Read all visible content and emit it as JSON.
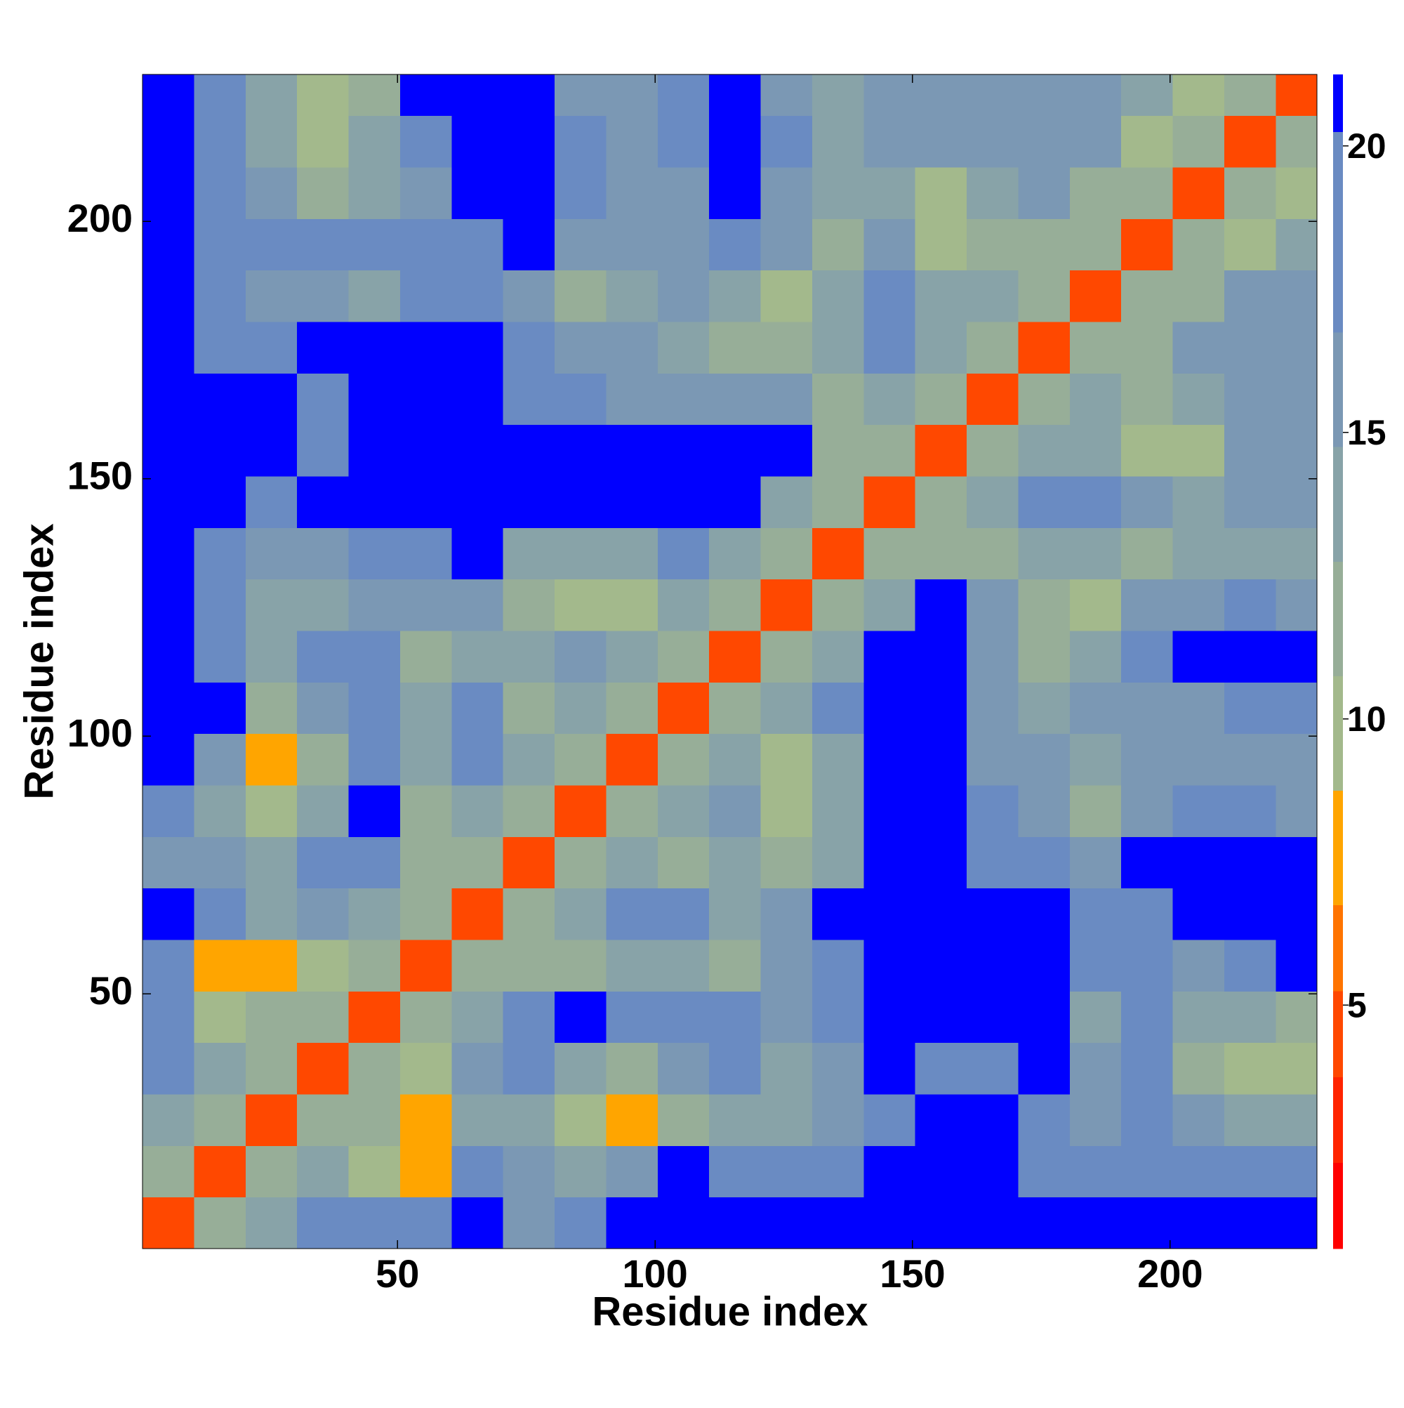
{
  "chart_data": {
    "type": "heatmap",
    "xlabel": "Residue index",
    "ylabel": "Residue index",
    "x_edges": [
      0.5,
      10.5,
      20.5,
      30.5,
      40.5,
      50.5,
      60.5,
      70.5,
      80.5,
      90.5,
      100.5,
      110.5,
      120.5,
      130.5,
      140.5,
      150.5,
      160.5,
      170.5,
      180.5,
      190.5,
      200.5,
      210.5,
      220.5,
      228.5
    ],
    "y_edges": [
      0.5,
      10.5,
      20.5,
      30.5,
      40.5,
      50.5,
      60.5,
      70.5,
      80.5,
      90.5,
      100.5,
      110.5,
      120.5,
      130.5,
      140.5,
      150.5,
      160.5,
      170.5,
      180.5,
      190.5,
      200.5,
      210.5,
      220.5,
      228.5
    ],
    "xlim": [
      0.5,
      228.5
    ],
    "ylim": [
      0.5,
      228.5
    ],
    "xticks": [
      50,
      100,
      150,
      200
    ],
    "yticks": [
      50,
      100,
      150,
      200
    ],
    "values": [
      [
        4,
        12,
        13,
        17,
        17,
        17,
        21,
        15,
        17,
        21,
        21,
        21,
        21,
        21,
        21,
        21,
        21,
        21,
        21,
        21,
        21,
        21,
        21
      ],
      [
        12,
        4,
        12,
        13,
        9,
        7,
        17,
        15,
        13,
        15,
        21,
        17,
        17,
        17,
        21,
        21,
        21,
        19,
        19,
        19,
        19,
        19,
        19
      ],
      [
        13,
        12,
        4,
        12,
        11,
        7,
        13,
        13,
        9,
        7,
        11,
        13,
        13,
        15,
        19,
        21,
        21,
        19,
        15,
        17,
        15,
        13,
        13
      ],
      [
        17,
        13,
        12,
        4,
        12,
        9,
        15,
        17,
        13,
        11,
        15,
        17,
        13,
        15,
        21,
        17,
        17,
        21,
        15,
        17,
        11,
        9,
        9
      ],
      [
        17,
        9,
        11,
        12,
        4,
        12,
        13,
        17,
        21,
        17,
        17,
        17,
        15,
        17,
        21,
        21,
        21,
        21,
        13,
        17,
        13,
        13,
        11
      ],
      [
        17,
        7,
        7,
        9,
        12,
        4,
        12,
        11,
        11,
        13,
        13,
        11,
        15,
        17,
        21,
        21,
        21,
        21,
        17,
        19,
        15,
        17,
        21
      ],
      [
        21,
        17,
        13,
        15,
        13,
        12,
        4,
        12,
        13,
        19,
        17,
        13,
        15,
        21,
        21,
        21,
        21,
        21,
        17,
        19,
        21,
        21,
        21
      ],
      [
        15,
        15,
        13,
        17,
        17,
        11,
        12,
        4,
        12,
        13,
        11,
        13,
        11,
        13,
        21,
        21,
        19,
        17,
        15,
        21,
        21,
        21,
        21
      ],
      [
        17,
        13,
        9,
        13,
        21,
        11,
        13,
        12,
        4,
        12,
        13,
        15,
        9,
        13,
        21,
        21,
        17,
        15,
        11,
        15,
        17,
        17,
        15
      ],
      [
        21,
        15,
        7,
        11,
        17,
        13,
        19,
        13,
        12,
        4,
        12,
        13,
        9,
        13,
        21,
        21,
        15,
        15,
        13,
        15,
        15,
        15,
        15
      ],
      [
        21,
        21,
        11,
        15,
        17,
        13,
        17,
        11,
        13,
        12,
        4,
        12,
        13,
        17,
        21,
        21,
        15,
        13,
        15,
        15,
        15,
        17,
        17
      ],
      [
        21,
        17,
        13,
        17,
        17,
        11,
        13,
        13,
        15,
        13,
        12,
        4,
        12,
        13,
        21,
        21,
        15,
        11,
        13,
        17,
        21,
        21,
        21
      ],
      [
        21,
        17,
        13,
        13,
        15,
        15,
        15,
        11,
        9,
        9,
        13,
        12,
        4,
        12,
        13,
        21,
        15,
        11,
        9,
        15,
        15,
        17,
        15
      ],
      [
        21,
        17,
        15,
        15,
        17,
        17,
        21,
        13,
        13,
        13,
        17,
        13,
        12,
        4,
        12,
        11,
        11,
        13,
        13,
        11,
        13,
        13,
        13
      ],
      [
        21,
        21,
        19,
        21,
        21,
        21,
        21,
        21,
        21,
        21,
        21,
        21,
        13,
        12,
        4,
        12,
        13,
        17,
        19,
        15,
        13,
        15,
        15
      ],
      [
        21,
        21,
        21,
        17,
        21,
        21,
        21,
        21,
        21,
        21,
        21,
        21,
        21,
        11,
        12,
        4,
        12,
        13,
        13,
        9,
        9,
        15,
        15
      ],
      [
        21,
        21,
        21,
        17,
        21,
        21,
        21,
        19,
        17,
        15,
        15,
        15,
        15,
        11,
        13,
        12,
        4,
        12,
        13,
        11,
        13,
        15,
        15
      ],
      [
        21,
        19,
        19,
        21,
        21,
        21,
        21,
        17,
        15,
        15,
        13,
        11,
        11,
        13,
        17,
        13,
        12,
        4,
        12,
        11,
        15,
        15,
        15
      ],
      [
        21,
        19,
        15,
        15,
        13,
        17,
        17,
        15,
        11,
        13,
        15,
        13,
        9,
        13,
        19,
        13,
        13,
        12,
        4,
        12,
        11,
        15,
        15
      ],
      [
        21,
        19,
        17,
        17,
        17,
        19,
        19,
        21,
        15,
        15,
        15,
        17,
        15,
        11,
        15,
        9,
        11,
        11,
        12,
        4,
        12,
        9,
        13
      ],
      [
        21,
        19,
        15,
        11,
        13,
        15,
        21,
        21,
        17,
        15,
        15,
        21,
        15,
        13,
        13,
        9,
        13,
        15,
        11,
        12,
        4,
        12,
        9
      ],
      [
        21,
        19,
        13,
        9,
        13,
        17,
        21,
        21,
        17,
        15,
        17,
        21,
        17,
        13,
        15,
        15,
        15,
        15,
        15,
        9,
        12,
        4,
        12
      ],
      [
        21,
        19,
        13,
        9,
        11,
        21,
        21,
        21,
        15,
        15,
        17,
        21,
        15,
        13,
        15,
        15,
        15,
        15,
        15,
        13,
        9,
        12,
        4
      ]
    ],
    "colorbar": {
      "bounds": [
        0.75,
        2.25,
        3.75,
        5.25,
        6.75,
        8.75,
        10.75,
        12.75,
        14.75,
        16.75,
        20.25,
        21.25
      ],
      "colors": [
        "#ff0000",
        "#ff2400",
        "#ff4800",
        "#ff7400",
        "#ffa500",
        "#a3b98c",
        "#97ae98",
        "#88a3a8",
        "#7b98b4",
        "#6a8bc2",
        "#0000ff"
      ],
      "ticks": [
        5,
        10,
        15,
        20
      ]
    }
  }
}
